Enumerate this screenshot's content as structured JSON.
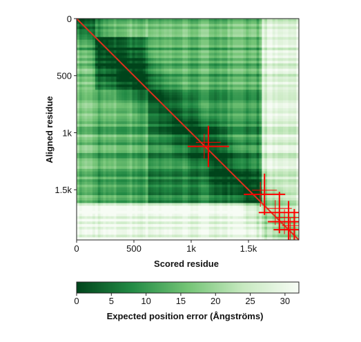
{
  "chart_data": {
    "type": "heatmap",
    "xlabel": "Scored residue",
    "ylabel": "Aligned residue",
    "x_range": [
      0,
      1940
    ],
    "y_range": [
      0,
      1940
    ],
    "x_ticks": [
      {
        "value": 0,
        "label": "0"
      },
      {
        "value": 500,
        "label": "500"
      },
      {
        "value": 1000,
        "label": "1k"
      },
      {
        "value": 1500,
        "label": "1.5k"
      }
    ],
    "y_ticks": [
      {
        "value": 0,
        "label": "0"
      },
      {
        "value": 500,
        "label": "500"
      },
      {
        "value": 1000,
        "label": "1k"
      },
      {
        "value": 1500,
        "label": "1.5k"
      }
    ],
    "colorbar": {
      "label": "Expected position error (Ångströms)",
      "range": [
        0,
        32
      ],
      "ticks": [
        {
          "value": 0,
          "label": "0"
        },
        {
          "value": 5,
          "label": "5"
        },
        {
          "value": 10,
          "label": "10"
        },
        {
          "value": 15,
          "label": "15"
        },
        {
          "value": 20,
          "label": "20"
        },
        {
          "value": 25,
          "label": "25"
        },
        {
          "value": 30,
          "label": "30"
        }
      ],
      "colors": [
        "#00441b",
        "#238b45",
        "#74c476",
        "#c7e9c0",
        "#f7fcf5"
      ]
    },
    "diagonal_color": "#e0301e",
    "marker_color": "#ff0000",
    "domains": [
      {
        "start": 0,
        "end": 170,
        "error": 12
      },
      {
        "start": 170,
        "end": 620,
        "error": 6
      },
      {
        "start": 620,
        "end": 1620,
        "error": 9
      },
      {
        "start": 1620,
        "end": 1940,
        "error": 26
      }
    ],
    "markers": [
      {
        "x": 1150,
        "y": 1120
      },
      {
        "x": 1640,
        "y": 1540
      },
      {
        "x": 1770,
        "y": 1700
      },
      {
        "x": 1850,
        "y": 1780
      },
      {
        "x": 1900,
        "y": 1850
      }
    ]
  }
}
